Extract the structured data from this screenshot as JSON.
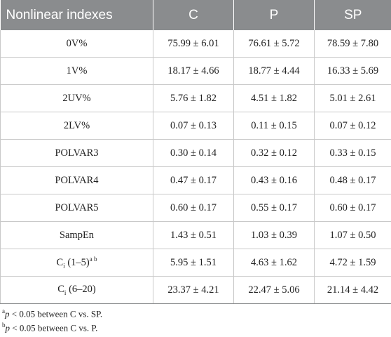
{
  "table": {
    "headers": [
      "Nonlinear indexes",
      "C",
      "P",
      "SP"
    ],
    "rows": [
      {
        "label": "0V%",
        "c": "75.99 ± 6.01",
        "p": "76.61 ± 5.72",
        "sp": "78.59 ± 7.80"
      },
      {
        "label": "1V%",
        "c": "18.17 ± 4.66",
        "p": "18.77 ± 4.44",
        "sp": "16.33 ± 5.69"
      },
      {
        "label": "2UV%",
        "c": "5.76 ± 1.82",
        "p": "4.51 ± 1.82",
        "sp": "5.01 ± 2.61"
      },
      {
        "label": "2LV%",
        "c": "0.07 ± 0.13",
        "p": "0.11 ± 0.15",
        "sp": "0.07 ± 0.12"
      },
      {
        "label": "POLVAR3",
        "c": "0.30 ± 0.14",
        "p": "0.32 ± 0.12",
        "sp": "0.33 ± 0.15"
      },
      {
        "label": "POLVAR4",
        "c": "0.47 ± 0.17",
        "p": "0.43 ± 0.16",
        "sp": "0.48 ± 0.17"
      },
      {
        "label": "POLVAR5",
        "c": "0.60 ± 0.17",
        "p": "0.55 ± 0.17",
        "sp": "0.60 ± 0.17"
      },
      {
        "label": "SampEn",
        "c": "1.43 ± 0.51",
        "p": "1.03 ± 0.39",
        "sp": "1.07 ± 0.50"
      },
      {
        "label_main": "C",
        "label_sub": "i",
        "label_rest": " (1–5)",
        "label_sup": "a b",
        "c": "5.95 ± 1.51",
        "p": "4.63 ± 1.62",
        "sp": "4.72 ± 1.59"
      },
      {
        "label_main": "C",
        "label_sub": "i",
        "label_rest": " (6–20)",
        "c": "23.37 ± 4.21",
        "p": "22.47 ± 5.06",
        "sp": "21.14 ± 4.42"
      }
    ]
  },
  "footnotes": [
    {
      "mark": "a",
      "p": "p",
      "text": " < 0.05 between C vs. SP."
    },
    {
      "mark": "b",
      "p": "p",
      "text": " < 0.05 between C vs. P."
    }
  ]
}
